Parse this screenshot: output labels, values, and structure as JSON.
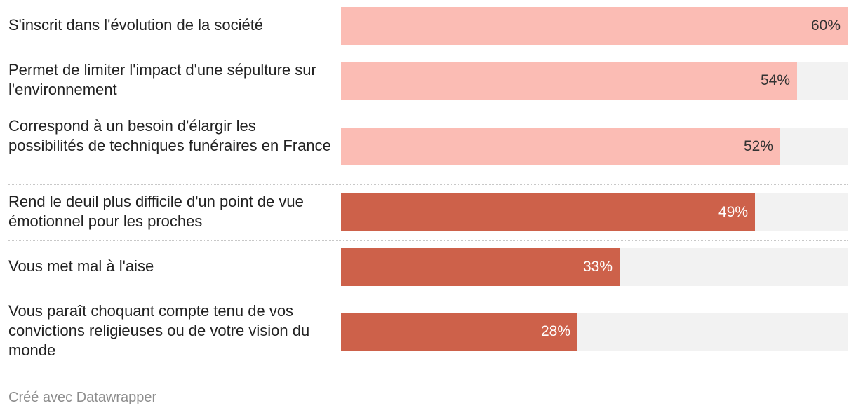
{
  "chart_data": {
    "type": "bar",
    "orientation": "horizontal",
    "xlim": [
      0,
      60
    ],
    "colors": {
      "positive": "#fbbcb4",
      "negative": "#cd614a",
      "track": "#f2f2f2",
      "label_dark": "#333333",
      "label_light": "#ffffff"
    },
    "rows": [
      {
        "label": "S'inscrit dans l'évolution de la société",
        "value": 60,
        "value_label": "60%",
        "group": "positive"
      },
      {
        "label": "Permet de limiter l'impact d'une sépulture sur l'environnement",
        "value": 54,
        "value_label": "54%",
        "group": "positive"
      },
      {
        "label": "Correspond à un besoin d'élargir les possibilités de techniques funéraires en France",
        "value": 52,
        "value_label": "52%",
        "group": "positive"
      },
      {
        "label": "Rend le deuil plus difficile d'un point de vue émotionnel pour les proches",
        "value": 49,
        "value_label": "49%",
        "group": "negative"
      },
      {
        "label": "Vous met mal à l'aise",
        "value": 33,
        "value_label": "33%",
        "group": "negative"
      },
      {
        "label": "Vous paraît choquant compte tenu de vos convictions religieuses ou de votre vision du monde",
        "value": 28,
        "value_label": "28%",
        "group": "negative"
      }
    ]
  },
  "footer": {
    "credit": "Créé avec Datawrapper"
  }
}
